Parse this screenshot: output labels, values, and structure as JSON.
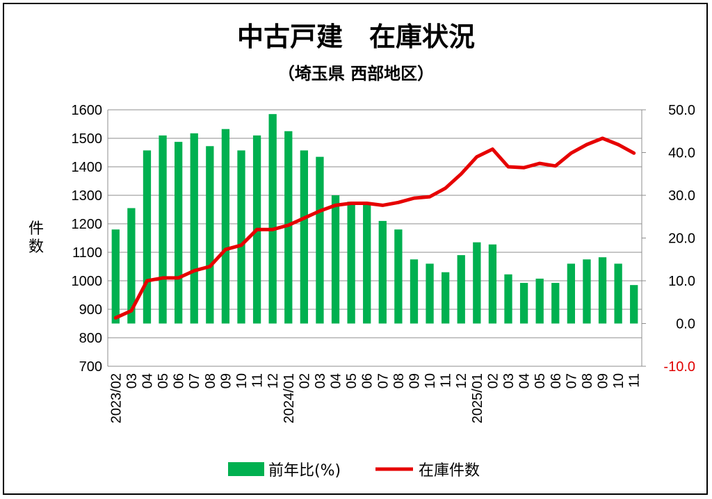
{
  "chart_data": {
    "type": "bar+line",
    "title": "中古戸建　在庫状況",
    "subtitle": "（埼玉県 西部地区）",
    "ylabel": "件数",
    "xlabel": "",
    "categories": [
      "2023/02",
      "03",
      "04",
      "05",
      "06",
      "07",
      "08",
      "09",
      "10",
      "11",
      "12",
      "2024/01",
      "02",
      "03",
      "04",
      "05",
      "06",
      "07",
      "08",
      "09",
      "10",
      "11",
      "12",
      "2025/01",
      "02",
      "03",
      "04",
      "05",
      "06",
      "07",
      "08",
      "09",
      "10",
      "11"
    ],
    "left_axis": {
      "ylim": [
        700,
        1600
      ],
      "ticks": [
        "700",
        "800",
        "900",
        "1000",
        "1100",
        "1200",
        "1300",
        "1400",
        "1500",
        "1600"
      ]
    },
    "right_axis": {
      "ylim": [
        -10,
        50
      ],
      "ticks": [
        "-10.0",
        "0.0",
        "10.0",
        "20.0",
        "30.0",
        "40.0",
        "50.0"
      ],
      "negative_color": "#e00000"
    },
    "series": [
      {
        "name": "前年比(%)",
        "type": "bar",
        "axis": "right",
        "color": "#00b050",
        "values": [
          22.0,
          27.0,
          40.5,
          44.0,
          42.5,
          44.5,
          41.5,
          45.5,
          40.5,
          44.0,
          49.0,
          45.0,
          40.5,
          39.0,
          30.0,
          28.5,
          28.0,
          24.0,
          22.0,
          15.0,
          14.0,
          12.0,
          16.0,
          19.0,
          18.5,
          11.5,
          9.5,
          10.5,
          9.5,
          14.0,
          15.0,
          15.5,
          14.0,
          9.0
        ]
      },
      {
        "name": "在庫件数",
        "type": "line",
        "axis": "left",
        "color": "#e60000",
        "values": [
          870,
          895,
          1000,
          1010,
          1010,
          1035,
          1050,
          1110,
          1125,
          1180,
          1180,
          1195,
          1220,
          1245,
          1265,
          1272,
          1272,
          1265,
          1275,
          1290,
          1295,
          1325,
          1375,
          1435,
          1462,
          1400,
          1397,
          1412,
          1403,
          1448,
          1478,
          1500,
          1478,
          1448
        ]
      }
    ],
    "legend": {
      "position": "bottom",
      "items": [
        "前年比(%)",
        "在庫件数"
      ]
    },
    "grid": true
  }
}
